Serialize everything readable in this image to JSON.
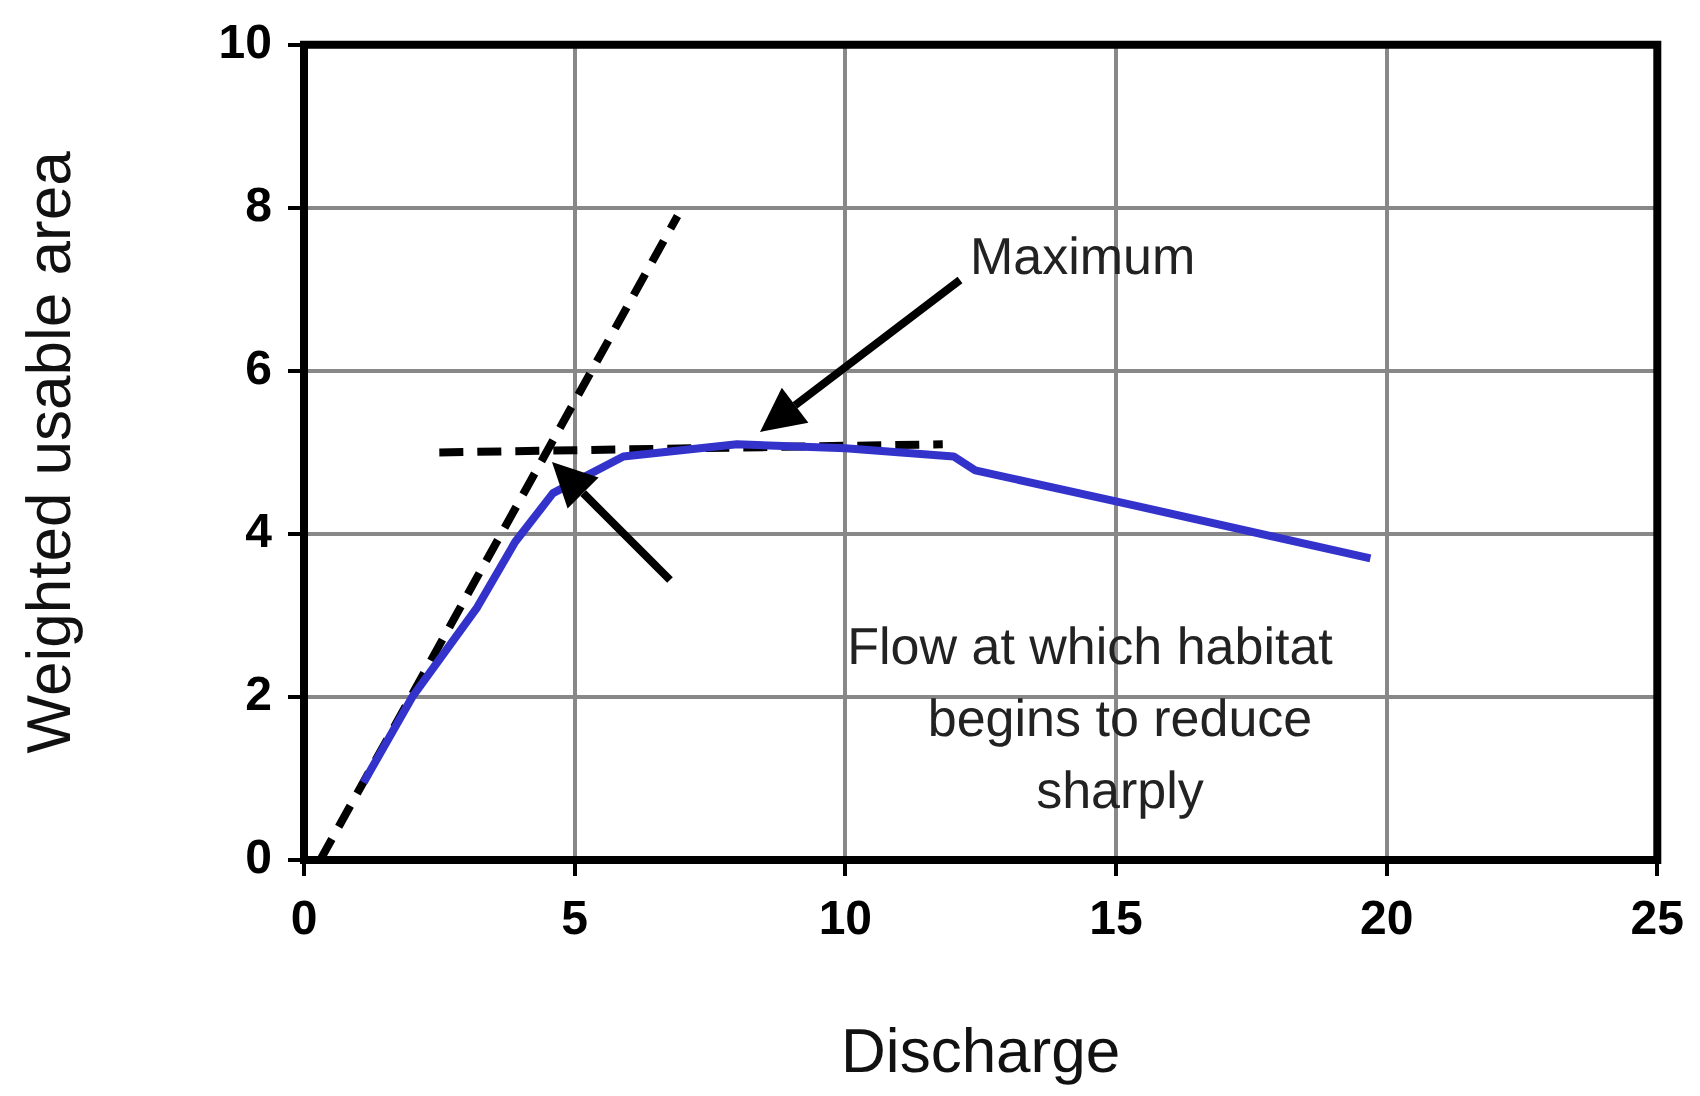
{
  "chart_data": {
    "type": "line",
    "xlabel": "Discharge",
    "ylabel": "Weighted usable area",
    "series": [
      {
        "color": "#3333cc",
        "x": [
          1.1,
          2,
          3.2,
          3.9,
          4.6,
          5.9,
          8,
          10,
          12,
          12.4,
          15,
          19.7
        ],
        "values": [
          0.95,
          2.0,
          3.1,
          3.9,
          4.5,
          4.95,
          5.1,
          5.05,
          4.95,
          4.78,
          4.4,
          3.7
        ],
        "line_style": "solid"
      },
      {
        "color": "#000000",
        "x": [
          0.3,
          6.9
        ],
        "values": [
          0,
          7.9
        ],
        "line_style": "dashed"
      },
      {
        "color": "#000000",
        "x": [
          2.5,
          11.8
        ],
        "values": [
          5.0,
          5.1
        ],
        "line_style": "dashed"
      }
    ],
    "annotations": [
      "Maximum",
      "Flow at which habitat begins to reduce sharply"
    ],
    "xlim": [
      0,
      25
    ],
    "xticks": [
      0,
      5,
      10,
      15,
      20,
      25
    ],
    "ylim": [
      0,
      10
    ],
    "yticks": [
      0,
      2,
      4,
      6,
      8,
      10
    ],
    "grid": true,
    "legend": false,
    "marker": "none"
  }
}
